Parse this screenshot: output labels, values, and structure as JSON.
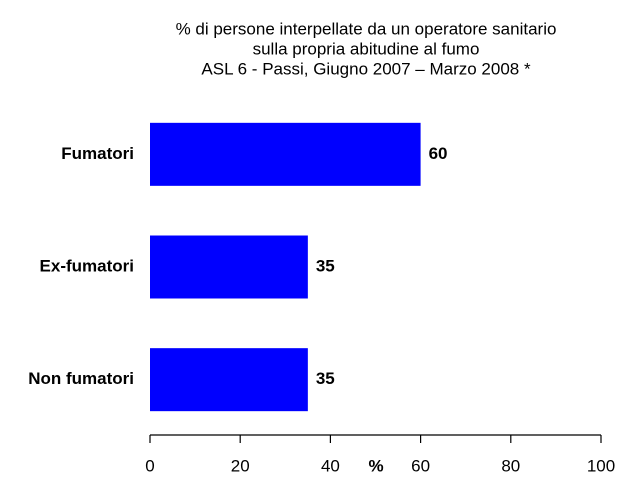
{
  "chart_data": {
    "type": "barh",
    "title": [
      "% di persone interpellate da un operatore sanitario",
      "sulla propria abitudine al fumo",
      "ASL 6 - Passi, Giugno 2007 – Marzo 2008 *"
    ],
    "x_label": "%",
    "categories": [
      "Fumatori",
      "Ex-fumatori",
      "Non fumatori"
    ],
    "values": [
      60,
      35,
      35
    ],
    "color": "#0000ff",
    "xlim": [
      0,
      100
    ],
    "xticks": [
      0,
      20,
      40,
      60,
      80,
      100
    ],
    "grid": false
  }
}
